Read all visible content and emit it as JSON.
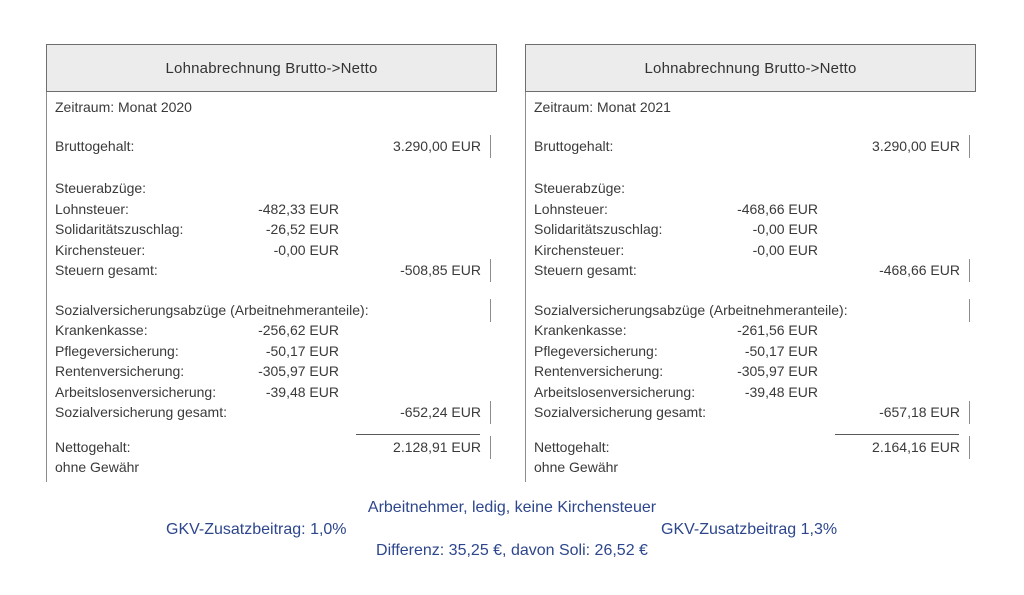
{
  "colors": {
    "accent_blue": "#2d468c",
    "body_text": "#3a3a3a",
    "header_background": "#ececec",
    "border_gray": "#8c8c8c"
  },
  "panels": [
    {
      "title": "Lohnabrechnung Brutto->Netto",
      "rows": [
        {
          "label": "Zeitraum: Monat 2020"
        },
        {
          "spacer": 18
        },
        {
          "label": "Bruttogehalt:",
          "right": "3.290,00 EUR",
          "tick": true
        },
        {
          "spacer": 22
        },
        {
          "label": "Steuerabzüge:"
        },
        {
          "label": "Lohnsteuer:",
          "mid": "-482,33 EUR"
        },
        {
          "label": "Solidaritätszuschlag:",
          "mid": "-26,52 EUR"
        },
        {
          "label": "Kirchensteuer:",
          "mid": "-0,00 EUR"
        },
        {
          "label": "Steuern gesamt:",
          "right": "-508,85 EUR",
          "tick": true
        },
        {
          "spacer": 19
        },
        {
          "label": "Sozialversicherungsabzüge (Arbeitnehmeranteile):",
          "tick": true
        },
        {
          "label": "Krankenkasse:",
          "mid": "-256,62 EUR"
        },
        {
          "label": "Pflegeversicherung:",
          "mid": "-50,17 EUR"
        },
        {
          "label": "Rentenversicherung:",
          "mid": "-305,97 EUR"
        },
        {
          "label": "Arbeitslosenversicherung:",
          "mid": "-39,48 EUR"
        },
        {
          "label": "Sozialversicherung gesamt:",
          "right": "-652,24 EUR",
          "tick": true
        },
        {
          "rule": true
        },
        {
          "label": "Nettogehalt:",
          "right": "2.128,91 EUR",
          "tick": true
        },
        {
          "label": "ohne Gewähr"
        }
      ]
    },
    {
      "title": "Lohnabrechnung Brutto->Netto",
      "rows": [
        {
          "label": "Zeitraum: Monat 2021"
        },
        {
          "spacer": 18
        },
        {
          "label": "Bruttogehalt:",
          "right": "3.290,00 EUR",
          "tick": true
        },
        {
          "spacer": 22
        },
        {
          "label": "Steuerabzüge:"
        },
        {
          "label": "Lohnsteuer:",
          "mid": "-468,66 EUR"
        },
        {
          "label": "Solidaritätszuschlag:",
          "mid": "-0,00 EUR"
        },
        {
          "label": "Kirchensteuer:",
          "mid": "-0,00 EUR"
        },
        {
          "label": "Steuern gesamt:",
          "right": "-468,66 EUR",
          "tick": true
        },
        {
          "spacer": 19
        },
        {
          "label": "Sozialversicherungsabzüge (Arbeitnehmeranteile):",
          "tick": true
        },
        {
          "label": "Krankenkasse:",
          "mid": "-261,56 EUR"
        },
        {
          "label": "Pflegeversicherung:",
          "mid": "-50,17 EUR"
        },
        {
          "label": "Rentenversicherung:",
          "mid": "-305,97 EUR"
        },
        {
          "label": "Arbeitslosenversicherung:",
          "mid": "-39,48 EUR"
        },
        {
          "label": "Sozialversicherung gesamt:",
          "right": "-657,18 EUR",
          "tick": true
        },
        {
          "rule": true
        },
        {
          "label": "Nettogehalt:",
          "right": "2.164,16 EUR",
          "tick": true
        },
        {
          "label": "ohne Gewähr"
        }
      ]
    }
  ],
  "footer": {
    "line1": "Arbeitnehmer, ledig, keine Kirchensteuer",
    "gkv_left": "GKV-Zusatzbeitrag: 1,0%",
    "gkv_right": "GKV-Zusatzbeitrag 1,3%",
    "line3": "Differenz: 35,25 €, davon Soli: 26,52 €"
  }
}
